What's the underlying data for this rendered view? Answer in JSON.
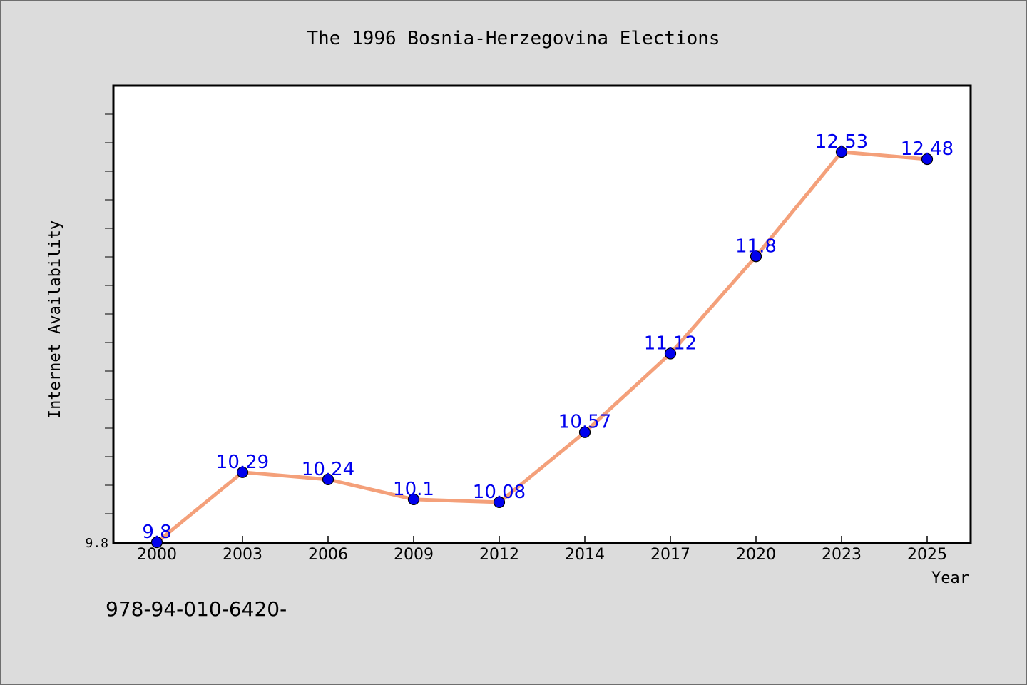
{
  "chart_data": {
    "type": "line",
    "title": "The 1996 Bosnia-Herzegovina Elections",
    "xlabel": "Year",
    "ylabel": "Internet Availability",
    "categories": [
      "2000",
      "2003",
      "2006",
      "2009",
      "2012",
      "2014",
      "2017",
      "2020",
      "2023",
      "2025"
    ],
    "series": [
      {
        "values": [
          9.8,
          10.29,
          10.24,
          10.1,
          10.08,
          10.57,
          11.12,
          11.8,
          12.53,
          12.48
        ],
        "labels": [
          "9.8",
          "10.29",
          "10.24",
          "10.1",
          "10.08",
          "10.57",
          "11.12",
          "11.8",
          "12.53",
          "12.48"
        ],
        "line_color": "#f4a07a",
        "marker_color": "#0000ee",
        "label_color": "#0000ee"
      }
    ],
    "yticks": [
      "9.8"
    ],
    "ylim": [
      9.8,
      13.0
    ],
    "grid": false,
    "legend": "none"
  },
  "footer_text": "978-94-010-6420-",
  "colors": {
    "background": "#dcdcdc",
    "plot_background": "#ffffff",
    "axis": "#000000"
  }
}
